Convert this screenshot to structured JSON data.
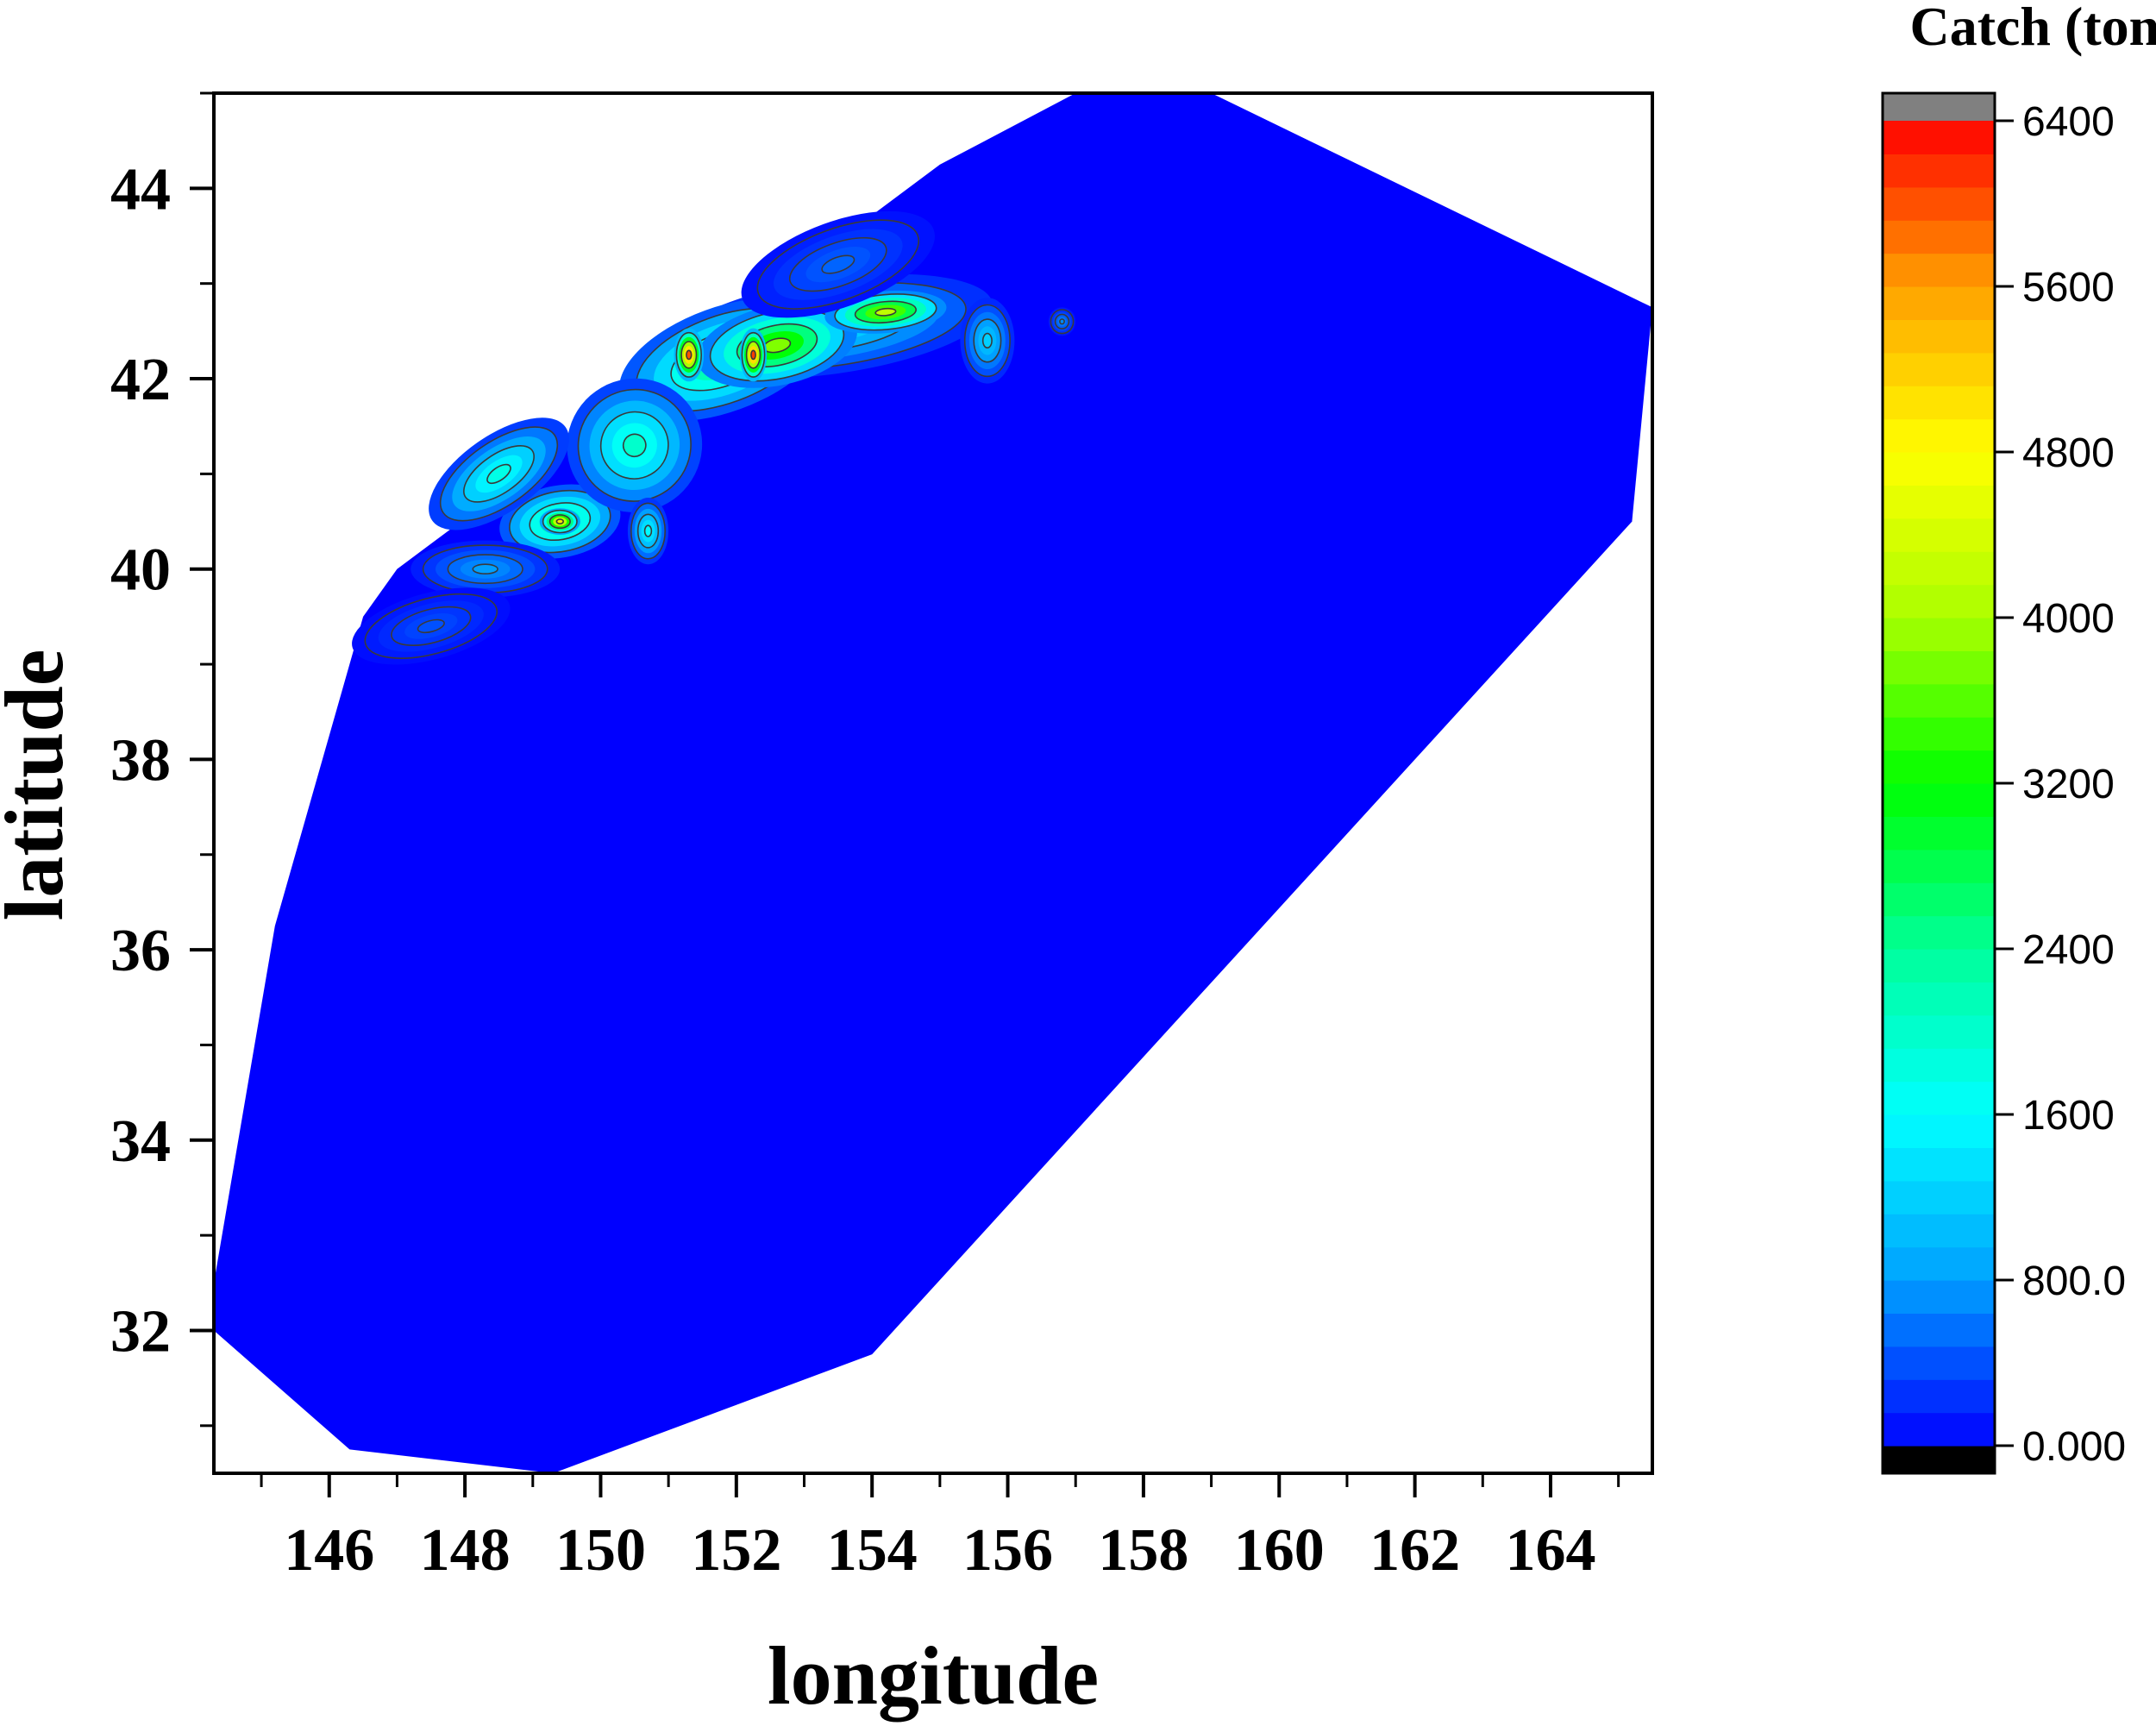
{
  "chart_data": {
    "type": "heatmap",
    "subtype": "filled-contour",
    "xlabel": "longitude",
    "ylabel": "latitude",
    "xlim": [
      144.3,
      165.5
    ],
    "ylim": [
      30.5,
      45.0
    ],
    "x_ticks": [
      "146",
      "148",
      "150",
      "152",
      "154",
      "156",
      "158",
      "160",
      "162",
      "164"
    ],
    "y_ticks": [
      "32",
      "34",
      "36",
      "38",
      "40",
      "42",
      "44"
    ],
    "x_tick_values": [
      146,
      148,
      150,
      152,
      154,
      156,
      158,
      160,
      162,
      164
    ],
    "y_tick_values": [
      32,
      34,
      36,
      38,
      40,
      42,
      44
    ],
    "x_minor_values": [
      145,
      147,
      149,
      151,
      153,
      155,
      157,
      159,
      161,
      163,
      165
    ],
    "y_minor_values": [
      31,
      33,
      35,
      37,
      39,
      41,
      43,
      45
    ],
    "grid": false,
    "domain_outline": [
      [
        144.3,
        32.0
      ],
      [
        146.3,
        30.75
      ],
      [
        149.3,
        30.5
      ],
      [
        154.0,
        31.75
      ],
      [
        165.2,
        40.5
      ],
      [
        165.5,
        42.75
      ],
      [
        159.0,
        45.0
      ],
      [
        157.0,
        45.0
      ],
      [
        155.0,
        44.25
      ],
      [
        147.0,
        40.0
      ],
      [
        146.5,
        39.5
      ],
      [
        145.2,
        36.25
      ],
      [
        144.3,
        32.5
      ]
    ],
    "background_value": 0,
    "hotspots": [
      {
        "lon": 153.4,
        "lat": 42.55,
        "rx": 2.4,
        "ry": 0.5,
        "rot": -8,
        "value": 1400
      },
      {
        "lon": 151.8,
        "lat": 42.2,
        "rx": 1.6,
        "ry": 0.55,
        "rot": -20,
        "value": 2600
      },
      {
        "lon": 152.6,
        "lat": 42.35,
        "rx": 1.2,
        "ry": 0.42,
        "rot": -12,
        "value": 3800
      },
      {
        "lon": 154.2,
        "lat": 42.7,
        "rx": 0.9,
        "ry": 0.22,
        "rot": -5,
        "value": 4200
      },
      {
        "lon": 151.3,
        "lat": 42.25,
        "rx": 0.22,
        "ry": 0.28,
        "rot": 0,
        "value": 6000
      },
      {
        "lon": 152.25,
        "lat": 42.25,
        "rx": 0.2,
        "ry": 0.28,
        "rot": 0,
        "value": 6100
      },
      {
        "lon": 149.4,
        "lat": 40.5,
        "rx": 0.9,
        "ry": 0.38,
        "rot": -10,
        "value": 2600
      },
      {
        "lon": 149.4,
        "lat": 40.5,
        "rx": 0.3,
        "ry": 0.14,
        "rot": 0,
        "value": 5000
      },
      {
        "lon": 150.5,
        "lat": 41.3,
        "rx": 1.0,
        "ry": 0.7,
        "rot": -30,
        "value": 2000
      },
      {
        "lon": 148.5,
        "lat": 41.0,
        "rx": 1.2,
        "ry": 0.4,
        "rot": -35,
        "value": 1800
      },
      {
        "lon": 155.7,
        "lat": 42.4,
        "rx": 0.4,
        "ry": 0.45,
        "rot": 0,
        "value": 1200
      },
      {
        "lon": 148.3,
        "lat": 40.0,
        "rx": 1.1,
        "ry": 0.3,
        "rot": 0,
        "value": 800
      },
      {
        "lon": 150.7,
        "lat": 40.4,
        "rx": 0.3,
        "ry": 0.35,
        "rot": 0,
        "value": 1600
      },
      {
        "lon": 156.8,
        "lat": 42.6,
        "rx": 0.2,
        "ry": 0.15,
        "rot": 0,
        "value": 700
      },
      {
        "lon": 153.5,
        "lat": 43.2,
        "rx": 1.5,
        "ry": 0.45,
        "rot": -20,
        "value": 500
      },
      {
        "lon": 147.5,
        "lat": 39.4,
        "rx": 1.2,
        "ry": 0.35,
        "rot": -15,
        "value": 400
      }
    ],
    "colorbar": {
      "title": "Catch (ton)",
      "min": 0,
      "max": 6400,
      "levels": 40,
      "tick_labels": [
        "0.000",
        "800.0",
        "1600",
        "2400",
        "3200",
        "4000",
        "4800",
        "5600",
        "6400"
      ],
      "tick_values": [
        0,
        800,
        1600,
        2400,
        3200,
        4000,
        4800,
        5600,
        6400
      ],
      "under_color": "#000000",
      "over_color": "#808080",
      "colors": [
        "#0000ff",
        "#00a0ff",
        "#00ffff",
        "#00ff99",
        "#00ff00",
        "#aaff00",
        "#ffff00",
        "#ffa000",
        "#ff0000"
      ]
    }
  }
}
